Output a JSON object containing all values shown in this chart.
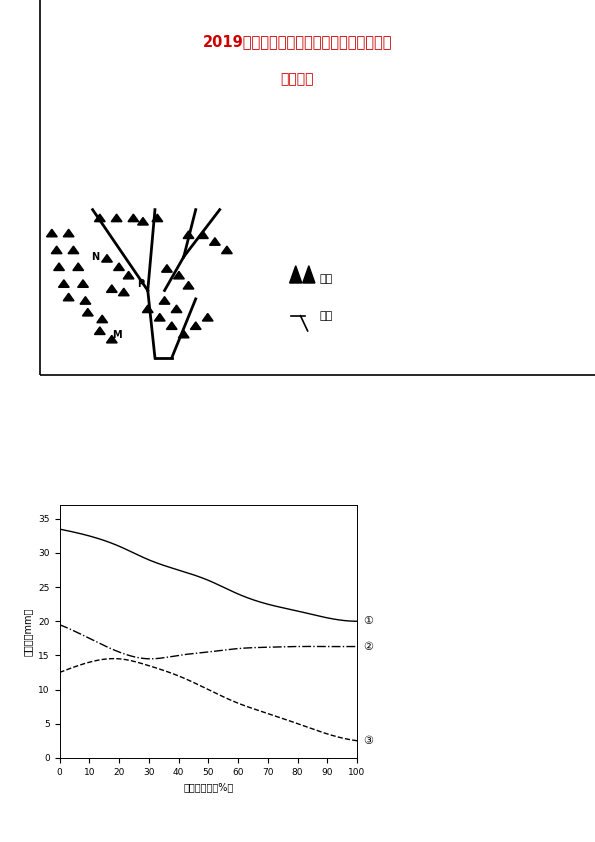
{
  "title_line1": "2019届高三下学期艺术班第二次模拟检测卷",
  "title_line2": "地理试题",
  "title_color": "#cc0000",
  "title_fontsize": 10.5,
  "subtitle_fontsize": 10,
  "chart_ylabel": "径流深（mm）",
  "chart_xlabel": "森林覆盖率（%）",
  "chart_xlim": [
    0,
    100
  ],
  "chart_ylim": [
    0,
    37
  ],
  "chart_xticks": [
    0,
    10,
    20,
    30,
    40,
    50,
    60,
    70,
    80,
    90,
    100
  ],
  "chart_yticks": [
    0,
    5,
    10,
    15,
    20,
    25,
    30,
    35
  ],
  "curve1_x": [
    0,
    10,
    20,
    30,
    40,
    50,
    60,
    70,
    80,
    90,
    100
  ],
  "curve1_y": [
    33.5,
    32.5,
    31,
    29,
    27.5,
    26,
    24,
    22.5,
    21.5,
    20.5,
    20
  ],
  "curve1_label": "①",
  "curve2_x": [
    0,
    10,
    20,
    30,
    40,
    50,
    60,
    70,
    80,
    90,
    100
  ],
  "curve2_y": [
    19.5,
    17.5,
    15.5,
    14.5,
    15,
    15.5,
    16,
    16.2,
    16.3,
    16.3,
    16.3
  ],
  "curve2_label": "②",
  "curve3_x": [
    0,
    10,
    20,
    30,
    40,
    50,
    60,
    70,
    80,
    90,
    100
  ],
  "curve3_y": [
    12.5,
    14,
    14.5,
    13.5,
    12,
    10,
    8,
    6.5,
    5,
    3.5,
    2.5
  ],
  "curve3_label": "③",
  "bg_color": "white",
  "page_width": 5.95,
  "page_height": 8.42,
  "legend_mountain_label": "山脉",
  "legend_river_label": "河流"
}
